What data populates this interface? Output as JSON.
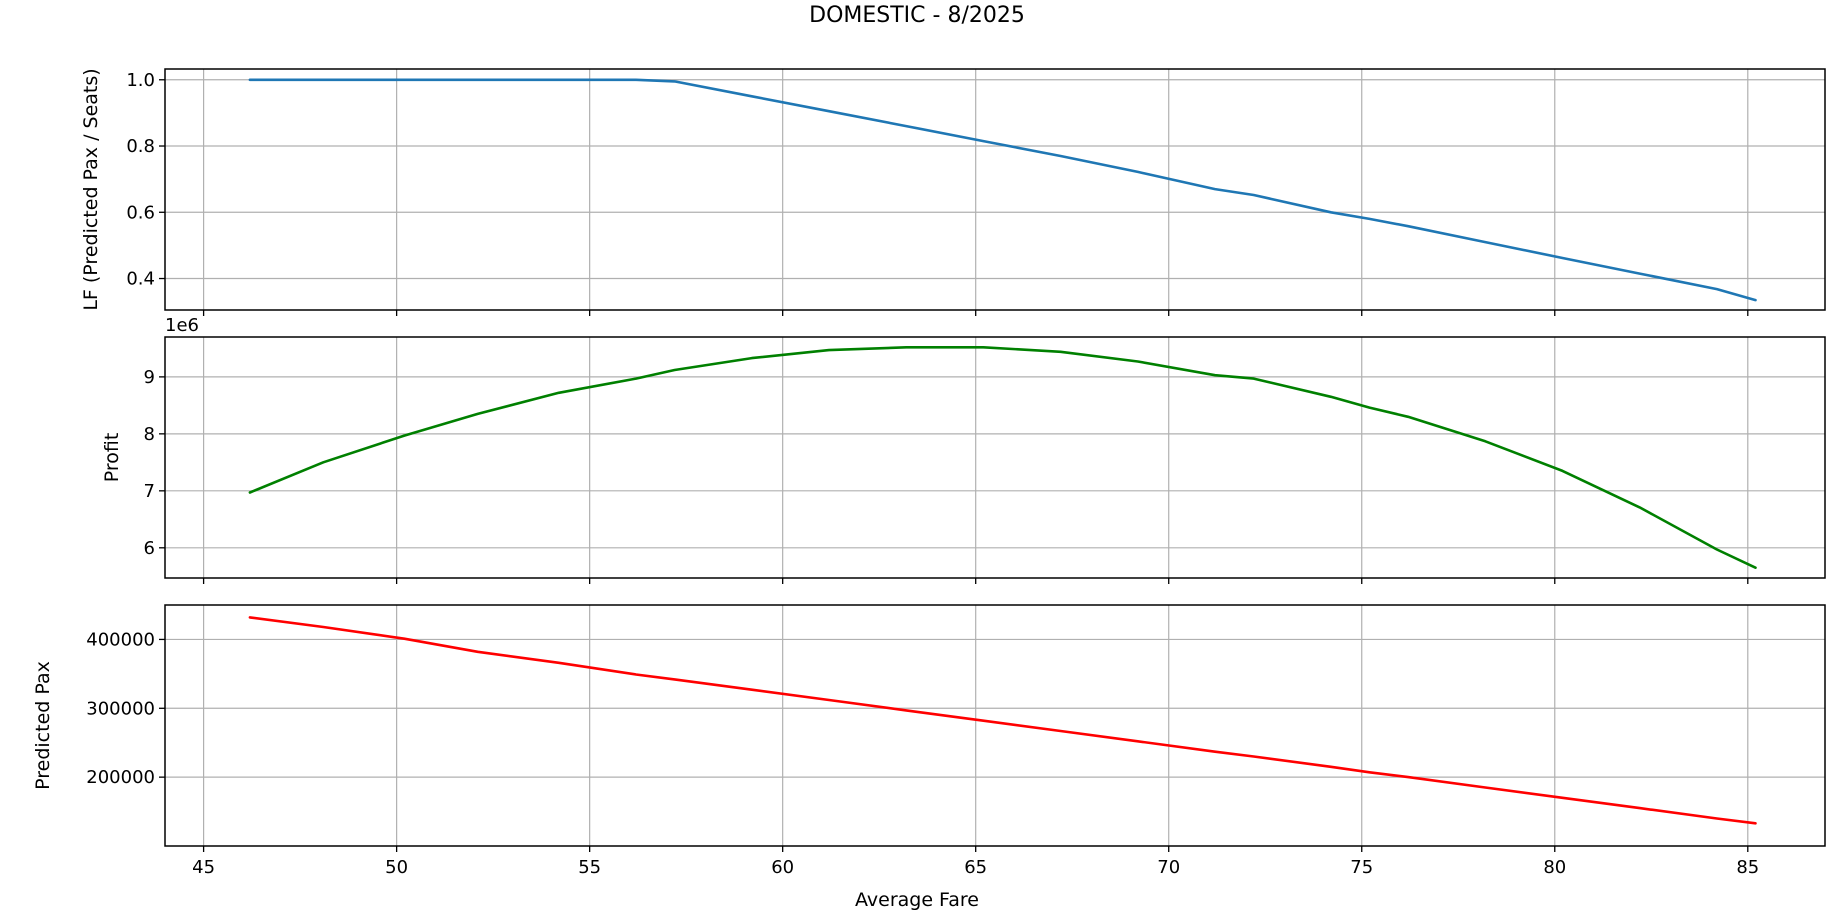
{
  "chart_data": {
    "title": "DOMESTIC - 8/2025",
    "xlabel": "Average Fare",
    "xlim": [
      44.0,
      87.0
    ],
    "xticks": [
      45,
      50,
      55,
      60,
      65,
      70,
      75,
      80,
      85
    ],
    "x": [
      46.2,
      48.1,
      50.2,
      52.1,
      54.2,
      56.2,
      57.2,
      59.2,
      61.2,
      63.2,
      65.2,
      67.2,
      69.2,
      71.2,
      72.2,
      74.2,
      75.2,
      76.2,
      78.2,
      80.2,
      82.2,
      84.2,
      85.2
    ],
    "panels": [
      {
        "type": "line",
        "ylabel": "LF (Predicted Pax / Seats)",
        "ylim": [
          0.305,
          1.0325
        ],
        "yticks": [
          0.4,
          0.6,
          0.8,
          1.0
        ],
        "ytick_labels": [
          "0.4",
          "0.6",
          "0.8",
          "1.0"
        ],
        "offset_text": "",
        "color": "#1f77b4",
        "grid": true,
        "values": [
          1.0,
          1.0,
          1.0,
          1.0,
          1.0,
          1.0,
          0.995,
          0.95,
          0.905,
          0.86,
          0.815,
          0.77,
          0.722,
          0.67,
          0.652,
          0.6,
          0.58,
          0.558,
          0.51,
          0.462,
          0.415,
          0.368,
          0.335
        ]
      },
      {
        "type": "line",
        "ylabel": "Profit",
        "ylim": [
          5.47,
          9.7
        ],
        "yticks": [
          6,
          7,
          8,
          9
        ],
        "ytick_labels": [
          "6",
          "7",
          "8",
          "9"
        ],
        "offset_text": "1e6",
        "color": "#008000",
        "grid": true,
        "values": [
          6.97,
          7.5,
          7.97,
          8.35,
          8.72,
          8.97,
          9.12,
          9.33,
          9.47,
          9.52,
          9.52,
          9.44,
          9.27,
          9.03,
          8.97,
          8.65,
          8.46,
          8.3,
          7.87,
          7.35,
          6.71,
          5.97,
          5.65
        ]
      },
      {
        "type": "line",
        "ylabel": "Predicted Pax",
        "ylim": [
          100000,
          450000
        ],
        "yticks": [
          200000,
          300000,
          400000
        ],
        "ytick_labels": [
          "200000",
          "300000",
          "400000"
        ],
        "offset_text": "",
        "color": "#ff0000",
        "grid": true,
        "values": [
          432000,
          418000,
          401000,
          382000,
          366000,
          349000,
          342000,
          327000,
          312000,
          297000,
          282000,
          267000,
          252000,
          237000,
          230000,
          215000,
          207000,
          200000,
          185000,
          170000,
          155000,
          140000,
          133000
        ]
      }
    ]
  }
}
